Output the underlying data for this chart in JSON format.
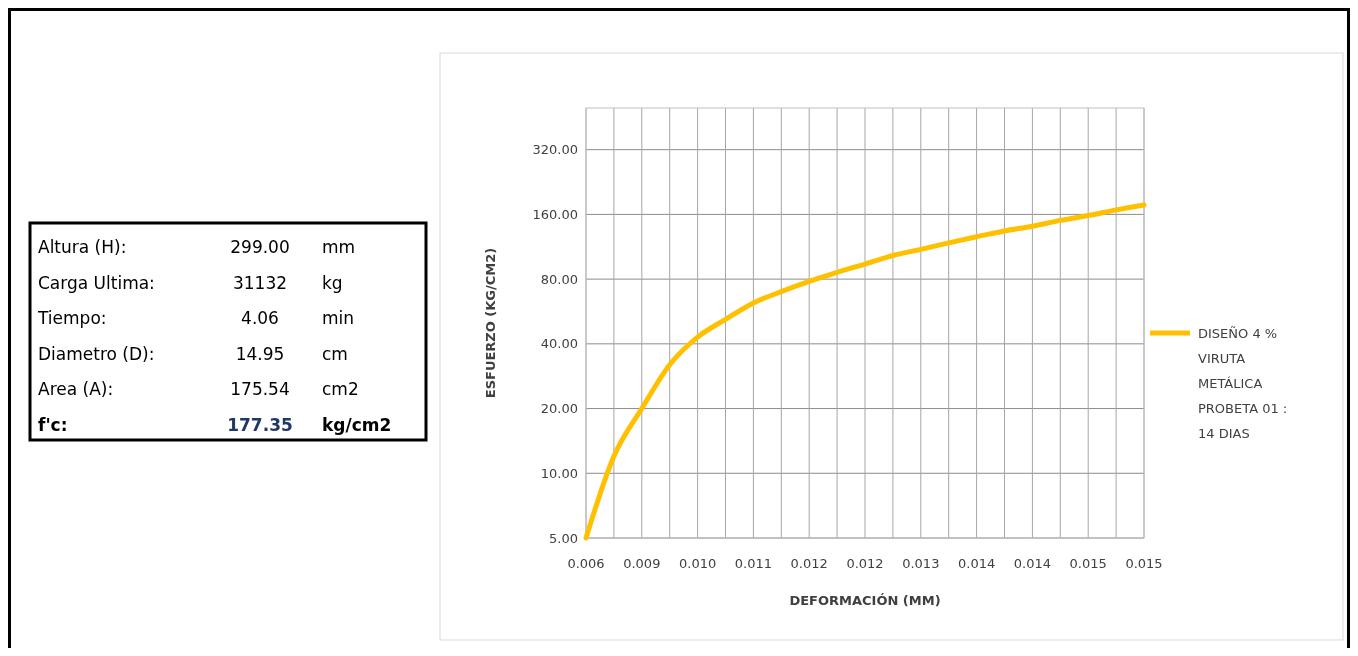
{
  "chart_data": [
    {
      "type": "other",
      "annotations": [
        "Altura (H):",
        "299.00",
        "mm",
        "Carga Ultima:",
        "31132",
        "kg",
        "Tiempo:",
        "4.06",
        "min",
        "Diametro (D):",
        "14.95",
        "cm",
        "Area (A):",
        "175.54",
        "cm2",
        "f'c:",
        "177.35",
        "kg/cm2"
      ]
    },
    {
      "type": "line",
      "xlabel": "DEFORMACIÓN (MM)",
      "ylabel": "ESFUERZO (KG/CM2)",
      "log": "y",
      "grid": true,
      "legend": "right",
      "marker": "none",
      "line_style": "solid",
      "categories": [
        "0.006",
        null,
        "0.009",
        null,
        "0.010",
        null,
        "0.011",
        null,
        "0.012",
        null,
        "0.012",
        null,
        "0.013",
        null,
        "0.014",
        null,
        "0.014",
        null,
        "0.015",
        null,
        "0.015"
      ],
      "ylim": [
        5,
        500
      ],
      "yticks": [
        {
          "value": 5,
          "label": "5.00"
        },
        {
          "value": 10,
          "label": "10.00"
        },
        {
          "value": 20,
          "label": "20.00"
        },
        {
          "value": 40,
          "label": "40.00"
        },
        {
          "value": 80,
          "label": "80.00"
        },
        {
          "value": 160,
          "label": "160.00"
        },
        {
          "value": 320,
          "label": "320.00"
        }
      ],
      "series": [
        {
          "name": "DISEÑO 4 % VIRUTA METÁLICA PROBETA 01 : 14 DIAS",
          "color": "#ffc000",
          "values": [
            5,
            12,
            20,
            32,
            43,
            52,
            62,
            70,
            78,
            86,
            94,
            103,
            110,
            118,
            126,
            134,
            141,
            150,
            158,
            168,
            177
          ]
        }
      ]
    }
  ]
}
